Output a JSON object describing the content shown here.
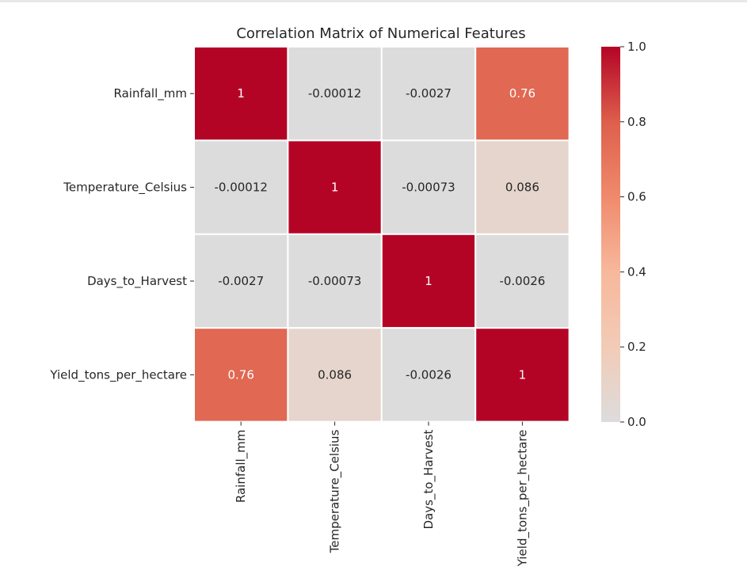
{
  "chart_data": {
    "type": "heatmap",
    "title": "Correlation Matrix of Numerical Features",
    "rows": [
      "Rainfall_mm",
      "Temperature_Celsius",
      "Days_to_Harvest",
      "Yield_tons_per_hectare"
    ],
    "columns": [
      "Rainfall_mm",
      "Temperature_Celsius",
      "Days_to_Harvest",
      "Yield_tons_per_hectare"
    ],
    "values": [
      [
        1,
        -0.00012,
        -0.0027,
        0.76
      ],
      [
        -0.00012,
        1,
        -0.00073,
        0.086
      ],
      [
        -0.0027,
        -0.00073,
        1,
        -0.0026
      ],
      [
        0.76,
        0.086,
        -0.0026,
        1
      ]
    ],
    "annotations": [
      [
        "1",
        "-0.00012",
        "-0.0027",
        "0.76"
      ],
      [
        "-0.00012",
        "1",
        "-0.00073",
        "0.086"
      ],
      [
        "-0.0027",
        "-0.00073",
        "1",
        "-0.0026"
      ],
      [
        "0.76",
        "0.086",
        "-0.0026",
        "1"
      ]
    ],
    "colormap": "coolwarm",
    "colorbar": {
      "range": [
        0,
        1
      ],
      "ticks": [
        0.0,
        0.2,
        0.4,
        0.6,
        0.8,
        1.0
      ],
      "tick_labels": [
        "0.0",
        "0.2",
        "0.4",
        "0.6",
        "0.8",
        "1.0"
      ],
      "colors": [
        "#dddcdc",
        "#f2cbb7",
        "#f7b89c",
        "#f08a6c",
        "#dd5f4b",
        "#b40426"
      ]
    },
    "grid": true,
    "legend_placement": "right"
  }
}
